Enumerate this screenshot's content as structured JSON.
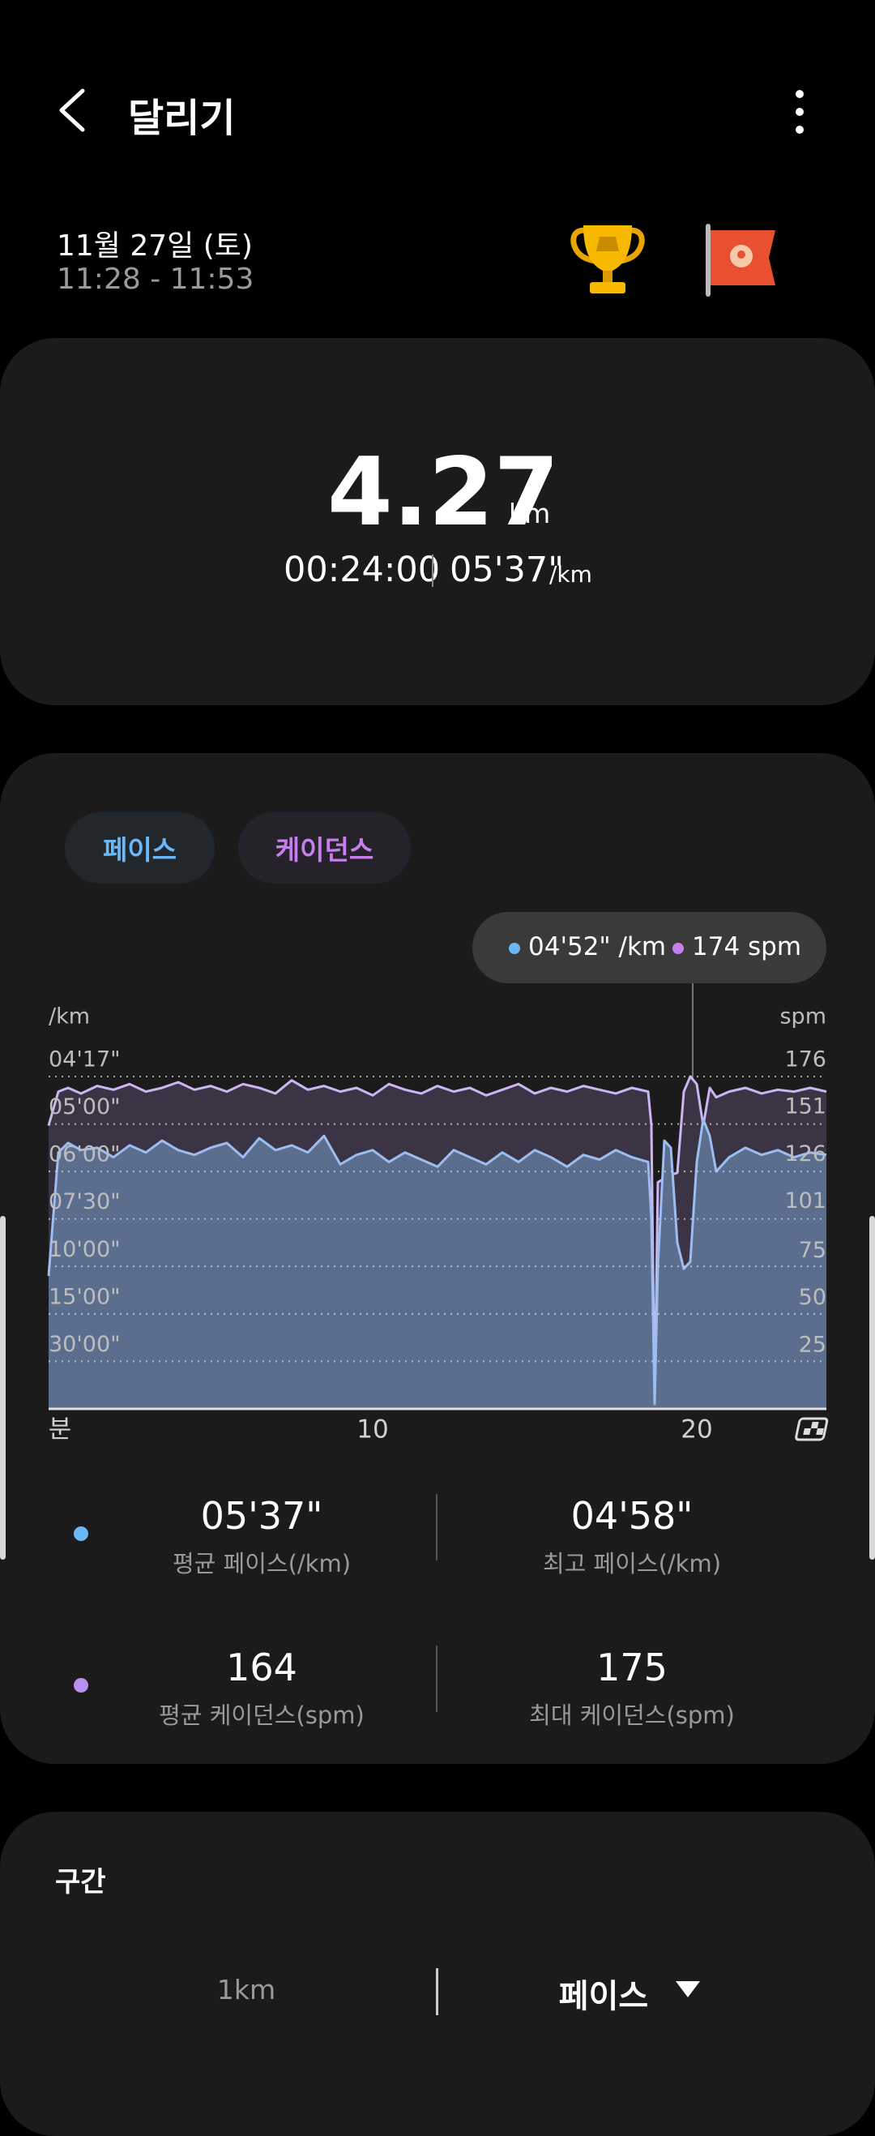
{
  "header": {
    "title": "달리기"
  },
  "session": {
    "date": "11월 27일 (토)",
    "time": "11:28 - 11:53"
  },
  "summary": {
    "distance": "4.27",
    "distance_unit": "km",
    "duration": "00:24:00",
    "pace": "05'37\"",
    "pace_unit": "/km"
  },
  "tabs": [
    "페이스",
    "케이던스"
  ],
  "tooltip": {
    "pace": "04'52\" /km",
    "cadence": "174 spm"
  },
  "chart_data": {
    "type": "line",
    "x_unit": "분",
    "y_unit": "/km",
    "y2_unit": "spm",
    "x": [
      0,
      0.3,
      0.6,
      1,
      1.5,
      2,
      2.5,
      3,
      3.5,
      4,
      4.5,
      5,
      5.5,
      6,
      6.5,
      7,
      7.5,
      8,
      8.5,
      9,
      9.5,
      10,
      10.5,
      11,
      11.5,
      12,
      12.5,
      13,
      13.5,
      14,
      14.5,
      15,
      15.5,
      16,
      16.5,
      17,
      17.5,
      18,
      18.5,
      18.6,
      18.7,
      18.8,
      19.0,
      19.2,
      19.4,
      19.6,
      19.8,
      20.0,
      20.2,
      20.4,
      20.6,
      21,
      21.5,
      22,
      22.5,
      23,
      23.5,
      24
    ],
    "series": [
      {
        "name": "케이던스",
        "color": "#c9b6f2",
        "fill": "#3b3444",
        "axis": "y2",
        "values": [
          150,
          168,
          170,
          167,
          171,
          169,
          172,
          168,
          170,
          173,
          169,
          171,
          168,
          172,
          170,
          167,
          174,
          169,
          171,
          168,
          170,
          166,
          172,
          169,
          167,
          171,
          168,
          170,
          166,
          169,
          172,
          167,
          170,
          168,
          171,
          169,
          167,
          170,
          168,
          150,
          2,
          120,
          122,
          124,
          125,
          168,
          176,
          172,
          150,
          170,
          165,
          168,
          170,
          167,
          169,
          168,
          170,
          168
        ]
      },
      {
        "name": "페이스",
        "color": "#9dbdf2",
        "fill": "#5b6e8d",
        "values": [
          5.6,
          10.8,
          11.2,
          10.9,
          11.0,
          10.6,
          11.1,
          10.8,
          11.3,
          10.9,
          10.7,
          11.0,
          11.2,
          10.6,
          11.4,
          10.9,
          11.1,
          10.8,
          11.5,
          10.3,
          10.7,
          10.9,
          10.4,
          10.8,
          10.5,
          10.2,
          10.9,
          10.6,
          10.3,
          10.8,
          10.4,
          10.9,
          10.6,
          10.2,
          10.7,
          10.5,
          10.9,
          10.6,
          10.4,
          8.0,
          0.2,
          6.0,
          11.3,
          11.0,
          7.0,
          5.9,
          6.2,
          10.4,
          12.2,
          11.5,
          10.0,
          10.6,
          11.0,
          10.7,
          10.9,
          10.6,
          10.8,
          10.7
        ]
      }
    ],
    "xlim": [
      0,
      24
    ],
    "xticks": [
      10,
      20
    ],
    "ylim": [
      0,
      14
    ],
    "yticks": [
      {
        "value": 14,
        "label": "04'17\""
      },
      {
        "value": 12,
        "label": "05'00\""
      },
      {
        "value": 10,
        "label": "06'00\""
      },
      {
        "value": 8,
        "label": "07'30\""
      },
      {
        "value": 6,
        "label": "10'00\""
      },
      {
        "value": 4,
        "label": "15'00\""
      },
      {
        "value": 2,
        "label": "30'00\""
      }
    ],
    "y2lim": [
      0,
      176
    ],
    "y2ticks": [
      176,
      151,
      126,
      101,
      75,
      50,
      25
    ],
    "grid": true
  },
  "stats": [
    {
      "value": "05'37\"",
      "label": "평균 페이스(/km)"
    },
    {
      "value": "04'58\"",
      "label": "최고 페이스(/km)"
    },
    {
      "value": "164",
      "label": "평균 케이던스(spm)"
    },
    {
      "value": "175",
      "label": "최대 케이던스(spm)"
    }
  ],
  "sections": {
    "title": "구간",
    "interval": "1km",
    "metric": "페이스"
  }
}
